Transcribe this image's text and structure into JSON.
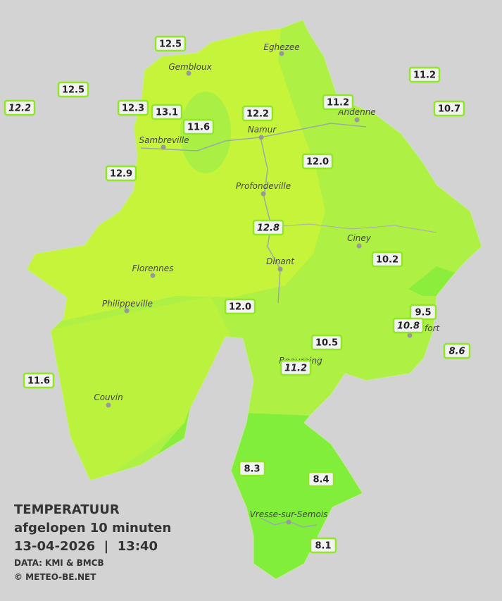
{
  "stations": [
    {
      "label": "12.5",
      "italic": false
    },
    {
      "label": "12.5",
      "italic": false
    },
    {
      "label": "12.2",
      "italic": true
    },
    {
      "label": "12.3",
      "italic": false
    },
    {
      "label": "13.1",
      "italic": false
    },
    {
      "label": "11.6",
      "italic": false
    },
    {
      "label": "12.2",
      "italic": false
    },
    {
      "label": "11.2",
      "italic": false
    },
    {
      "label": "11.2",
      "italic": false
    },
    {
      "label": "10.7",
      "italic": false
    },
    {
      "label": "12.9",
      "italic": false
    },
    {
      "label": "12.0",
      "italic": false
    },
    {
      "label": "12.8",
      "italic": true
    },
    {
      "label": "10.2",
      "italic": false
    },
    {
      "label": "12.0",
      "italic": false
    },
    {
      "label": "9.5",
      "italic": false
    },
    {
      "label": "10.8",
      "italic": true
    },
    {
      "label": "8.6",
      "italic": true
    },
    {
      "label": "10.5",
      "italic": false
    },
    {
      "label": "11.2",
      "italic": true
    },
    {
      "label": "11.6",
      "italic": false
    },
    {
      "label": "8.3",
      "italic": false
    },
    {
      "label": "8.4",
      "italic": false
    },
    {
      "label": "8.1",
      "italic": false
    }
  ],
  "cities": [
    {
      "name": "Eghezee"
    },
    {
      "name": "Gembloux"
    },
    {
      "name": "Andenne"
    },
    {
      "name": "Namur"
    },
    {
      "name": "Sambreville"
    },
    {
      "name": "Profondeville"
    },
    {
      "name": "Ciney"
    },
    {
      "name": "Dinant"
    },
    {
      "name": "Florennes"
    },
    {
      "name": "Philippeville"
    },
    {
      "name": "Couvin"
    },
    {
      "name": "Beauraing"
    },
    {
      "name": "Rochefort"
    },
    {
      "name": "Vresse-sur-Semois"
    }
  ],
  "legend": {
    "title": "TEMPERATUUR",
    "subtitle": "afgelopen 10 minuten",
    "datetime": "13-04-2026  |  13:40",
    "source": "DATA: KMI & BMCB",
    "copyright": "© METEO-BE.NET"
  }
}
